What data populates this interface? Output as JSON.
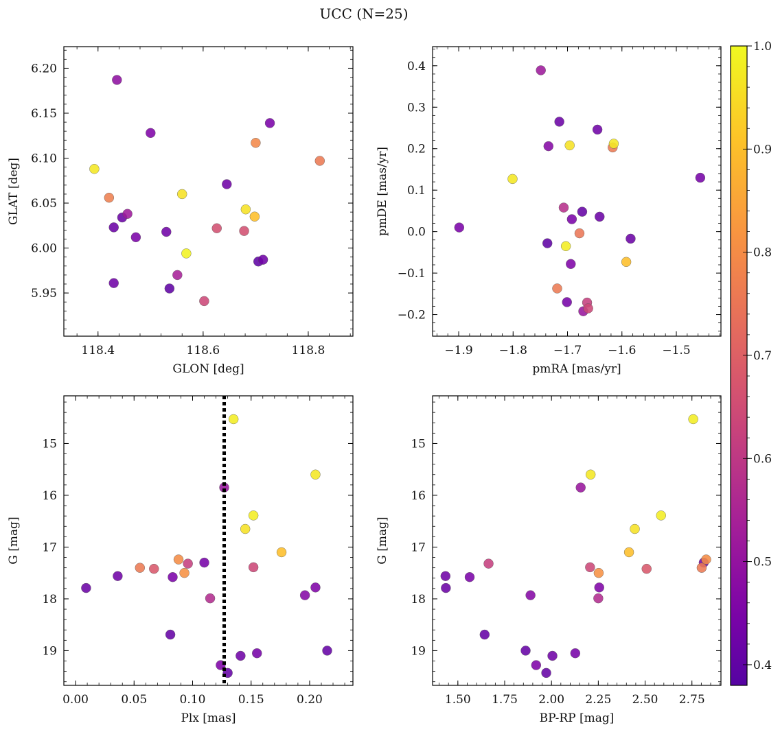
{
  "figure_title": "UCC (N=25)",
  "colorbar": {
    "ticks": [
      "0.4",
      "0.5",
      "0.6",
      "0.7",
      "0.8",
      "0.9",
      "1.0"
    ],
    "range": [
      0.38,
      1.0
    ],
    "colormap": "plasma"
  },
  "chart_data": [
    {
      "type": "scatter",
      "id": "glon_glat",
      "xlabel": "GLON [deg]",
      "ylabel": "GLAT [deg]",
      "xlim": [
        118.335,
        118.885
      ],
      "ylim": [
        5.902,
        6.224
      ],
      "xticks": [
        "118.4",
        "118.6",
        "118.8"
      ],
      "yticks": [
        "5.95",
        "6.00",
        "6.05",
        "6.10",
        "6.15",
        "6.20"
      ],
      "x": [
        118.393,
        118.421,
        118.43,
        118.43,
        118.436,
        118.446,
        118.456,
        118.472,
        118.5,
        118.53,
        118.536,
        118.551,
        118.56,
        118.568,
        118.602,
        118.626,
        118.645,
        118.678,
        118.681,
        118.698,
        118.7,
        118.705,
        118.714,
        118.727,
        118.822
      ],
      "y": [
        6.088,
        6.056,
        5.961,
        6.023,
        6.187,
        6.034,
        6.038,
        6.012,
        6.128,
        6.018,
        5.955,
        5.97,
        6.06,
        5.994,
        5.941,
        6.022,
        6.071,
        6.019,
        6.043,
        6.035,
        6.117,
        5.985,
        5.987,
        6.139,
        6.097
      ],
      "color_values": [
        0.97,
        0.77,
        0.43,
        0.42,
        0.49,
        0.42,
        0.52,
        0.45,
        0.46,
        0.43,
        0.4,
        0.54,
        0.96,
        0.99,
        0.64,
        0.66,
        0.43,
        0.66,
        0.96,
        0.9,
        0.79,
        0.4,
        0.43,
        0.45,
        0.76
      ]
    },
    {
      "type": "scatter",
      "id": "pmra_pmde",
      "xlabel": "pmRA [mas/yr]",
      "ylabel": "pmDE [mas/yr]",
      "xlim": [
        -1.948,
        -1.418
      ],
      "ylim": [
        -0.252,
        0.446
      ],
      "xticks": [
        "−1.9",
        "−1.8",
        "−1.7",
        "−1.6",
        "−1.5"
      ],
      "yticks": [
        "−0.2",
        "−0.1",
        "0.0",
        "0.1",
        "0.2",
        "0.3",
        "0.4"
      ],
      "x": [
        -1.899,
        -1.801,
        -1.749,
        -1.737,
        -1.735,
        -1.719,
        -1.715,
        -1.707,
        -1.703,
        -1.701,
        -1.696,
        -1.694,
        -1.692,
        -1.678,
        -1.673,
        -1.671,
        -1.664,
        -1.662,
        -1.645,
        -1.641,
        -1.617,
        -1.615,
        -1.592,
        -1.584,
        -1.456
      ],
      "y": [
        0.01,
        0.127,
        0.389,
        -0.028,
        0.206,
        -0.137,
        0.265,
        0.058,
        -0.035,
        -0.17,
        0.208,
        -0.078,
        0.03,
        -0.004,
        0.048,
        -0.192,
        -0.171,
        -0.185,
        0.246,
        0.036,
        0.203,
        0.212,
        -0.073,
        -0.017,
        0.13
      ],
      "color_values": [
        0.45,
        0.97,
        0.52,
        0.4,
        0.47,
        0.76,
        0.42,
        0.58,
        0.98,
        0.44,
        0.96,
        0.46,
        0.45,
        0.75,
        0.41,
        0.51,
        0.62,
        0.64,
        0.43,
        0.42,
        0.76,
        0.97,
        0.9,
        0.42,
        0.44
      ]
    },
    {
      "type": "scatter",
      "id": "plx_g",
      "xlabel": "Plx [mas]",
      "ylabel": "G [mag]",
      "xlim": [
        -0.01,
        0.237
      ],
      "ylim": [
        19.67,
        14.08
      ],
      "y_inverted": true,
      "xticks": [
        "0.00",
        "0.05",
        "0.10",
        "0.15",
        "0.20"
      ],
      "yticks": [
        "15",
        "16",
        "17",
        "18",
        "19"
      ],
      "vline": 0.127,
      "x": [
        0.009,
        0.036,
        0.055,
        0.067,
        0.081,
        0.083,
        0.088,
        0.093,
        0.096,
        0.11,
        0.115,
        0.124,
        0.127,
        0.13,
        0.135,
        0.141,
        0.145,
        0.152,
        0.152,
        0.155,
        0.176,
        0.196,
        0.205,
        0.205,
        0.215
      ],
      "y": [
        17.79,
        17.56,
        17.4,
        17.42,
        18.69,
        17.58,
        17.24,
        17.5,
        17.32,
        17.3,
        17.99,
        19.28,
        15.85,
        19.43,
        14.53,
        19.1,
        16.65,
        16.39,
        17.39,
        19.05,
        17.1,
        17.93,
        17.78,
        15.6,
        19.0
      ],
      "color_values": [
        0.42,
        0.43,
        0.76,
        0.68,
        0.41,
        0.45,
        0.8,
        0.81,
        0.62,
        0.44,
        0.57,
        0.46,
        0.51,
        0.41,
        0.98,
        0.43,
        0.96,
        0.98,
        0.64,
        0.44,
        0.9,
        0.47,
        0.46,
        0.97,
        0.41
      ]
    },
    {
      "type": "scatter",
      "id": "bprp_g",
      "xlabel": "BP-RP [mag]",
      "ylabel": "G [mag]",
      "xlim": [
        1.365,
        2.905
      ],
      "ylim": [
        19.67,
        14.08
      ],
      "y_inverted": true,
      "xticks": [
        "1.50",
        "1.75",
        "2.00",
        "2.25",
        "2.50",
        "2.75"
      ],
      "yticks": [
        "15",
        "16",
        "17",
        "18",
        "19"
      ],
      "x": [
        1.434,
        1.436,
        1.563,
        1.664,
        1.643,
        1.862,
        1.888,
        1.918,
        1.972,
        2.005,
        2.127,
        2.156,
        2.206,
        2.209,
        2.25,
        2.252,
        2.255,
        2.414,
        2.445,
        2.508,
        2.585,
        2.757,
        2.802,
        2.813,
        2.826
      ],
      "y": [
        17.56,
        17.79,
        17.58,
        17.32,
        18.69,
        19.0,
        17.93,
        19.28,
        19.43,
        19.1,
        19.05,
        15.85,
        17.39,
        15.6,
        17.99,
        17.5,
        17.78,
        17.1,
        16.65,
        17.42,
        16.39,
        14.53,
        17.4,
        17.3,
        17.24
      ],
      "color_values": [
        0.43,
        0.42,
        0.45,
        0.62,
        0.41,
        0.41,
        0.47,
        0.46,
        0.41,
        0.43,
        0.44,
        0.51,
        0.64,
        0.97,
        0.57,
        0.81,
        0.46,
        0.9,
        0.96,
        0.68,
        0.98,
        0.98,
        0.76,
        0.44,
        0.8
      ]
    }
  ]
}
